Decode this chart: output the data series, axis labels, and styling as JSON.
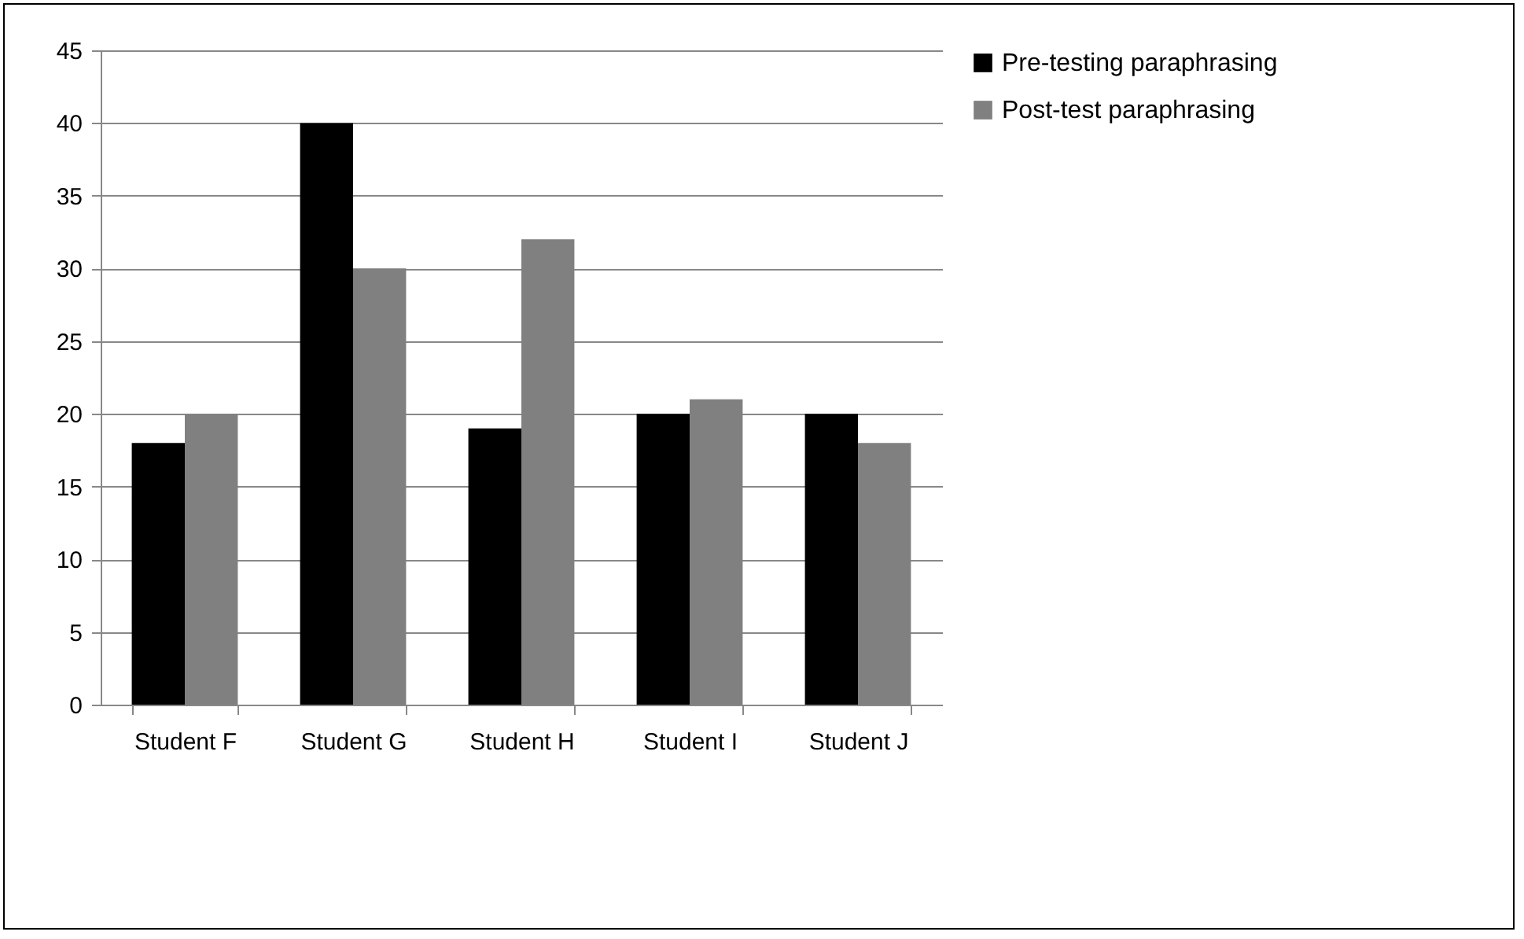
{
  "chart_data": {
    "type": "bar",
    "categories": [
      "Student F",
      "Student G",
      "Student H",
      "Student I",
      "Student J"
    ],
    "series": [
      {
        "name": "Pre-testing paraphrasing",
        "color": "#000000",
        "values": [
          18,
          40,
          19,
          20,
          20
        ]
      },
      {
        "name": "Post-test paraphrasing",
        "color": "#808080",
        "values": [
          20,
          30,
          32,
          21,
          18
        ]
      }
    ],
    "ylim": [
      0,
      45
    ],
    "yticks": [
      0,
      5,
      10,
      15,
      20,
      25,
      30,
      35,
      40,
      45
    ],
    "grid": "y",
    "legend": "right"
  }
}
